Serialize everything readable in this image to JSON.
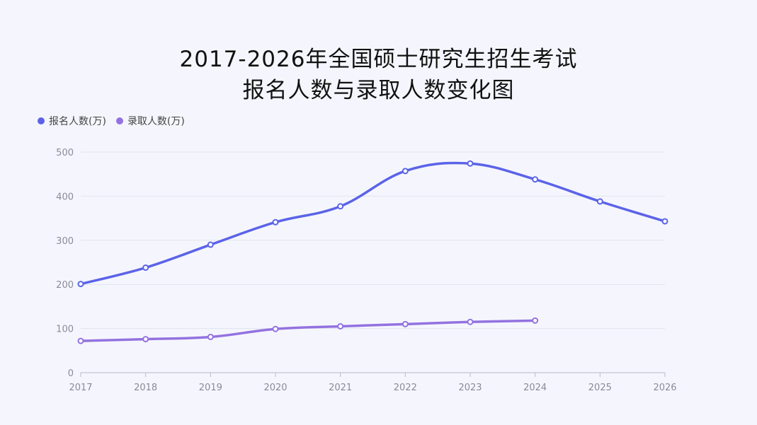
{
  "chart_data": {
    "type": "line",
    "title": "2017-2026年全国硕士研究生招生考试",
    "subtitle": "报名人数与录取人数变化图",
    "categories": [
      "2017",
      "2018",
      "2019",
      "2020",
      "2021",
      "2022",
      "2023",
      "2024",
      "2025",
      "2026"
    ],
    "series": [
      {
        "name": "报名人数(万)",
        "color": "#5b63e8",
        "values": [
          201,
          238,
          290,
          341,
          377,
          457,
          474,
          438,
          388,
          343
        ]
      },
      {
        "name": "录取人数(万)",
        "color": "#9372e0",
        "values": [
          72,
          76,
          81,
          99,
          105,
          110,
          115,
          118,
          null,
          null
        ]
      }
    ],
    "ylim": [
      0,
      500
    ],
    "yticks": [
      0,
      100,
      200,
      300,
      400,
      500
    ],
    "grid": true,
    "legend": "top-left",
    "xlabel": "",
    "ylabel": ""
  }
}
